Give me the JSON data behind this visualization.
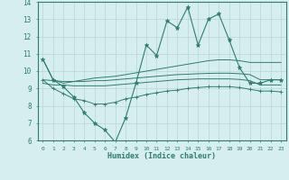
{
  "x": [
    0,
    1,
    2,
    3,
    4,
    5,
    6,
    7,
    8,
    9,
    10,
    11,
    12,
    13,
    14,
    15,
    16,
    17,
    18,
    19,
    20,
    21,
    22,
    23
  ],
  "line_main": [
    10.7,
    9.5,
    9.1,
    8.5,
    7.6,
    7.0,
    6.6,
    5.9,
    7.3,
    9.3,
    11.5,
    10.9,
    12.9,
    12.5,
    13.7,
    11.5,
    13.0,
    13.3,
    11.8,
    10.2,
    9.3,
    9.3,
    9.5,
    9.5
  ],
  "line_upper": [
    10.7,
    9.5,
    9.3,
    9.4,
    9.5,
    9.6,
    9.65,
    9.7,
    9.8,
    9.9,
    10.0,
    10.1,
    10.2,
    10.3,
    10.4,
    10.5,
    10.6,
    10.65,
    10.65,
    10.6,
    10.5,
    10.5,
    10.5,
    10.5
  ],
  "line_mid1": [
    9.5,
    9.45,
    9.4,
    9.4,
    9.4,
    9.45,
    9.45,
    9.5,
    9.55,
    9.6,
    9.65,
    9.7,
    9.75,
    9.8,
    9.82,
    9.85,
    9.87,
    9.88,
    9.88,
    9.85,
    9.8,
    9.5,
    9.5,
    9.5
  ],
  "line_mid2": [
    9.3,
    9.2,
    9.2,
    9.15,
    9.15,
    9.15,
    9.15,
    9.2,
    9.25,
    9.3,
    9.35,
    9.4,
    9.45,
    9.5,
    9.52,
    9.55,
    9.55,
    9.55,
    9.55,
    9.52,
    9.45,
    9.2,
    9.2,
    9.2
  ],
  "line_lower": [
    9.5,
    9.0,
    8.7,
    8.4,
    8.3,
    8.1,
    8.1,
    8.2,
    8.4,
    8.5,
    8.65,
    8.75,
    8.85,
    8.9,
    9.0,
    9.05,
    9.1,
    9.1,
    9.1,
    9.05,
    8.95,
    8.85,
    8.85,
    8.8
  ],
  "color": "#2e7d6e",
  "bg_color": "#d6eef0",
  "grid_color": "#b8d5d8",
  "xlabel": "Humidex (Indice chaleur)",
  "ylim": [
    6,
    14
  ],
  "xlim": [
    -0.5,
    23.5
  ],
  "yticks": [
    6,
    7,
    8,
    9,
    10,
    11,
    12,
    13,
    14
  ],
  "xticks": [
    0,
    1,
    2,
    3,
    4,
    5,
    6,
    7,
    8,
    9,
    10,
    11,
    12,
    13,
    14,
    15,
    16,
    17,
    18,
    19,
    20,
    21,
    22,
    23
  ]
}
